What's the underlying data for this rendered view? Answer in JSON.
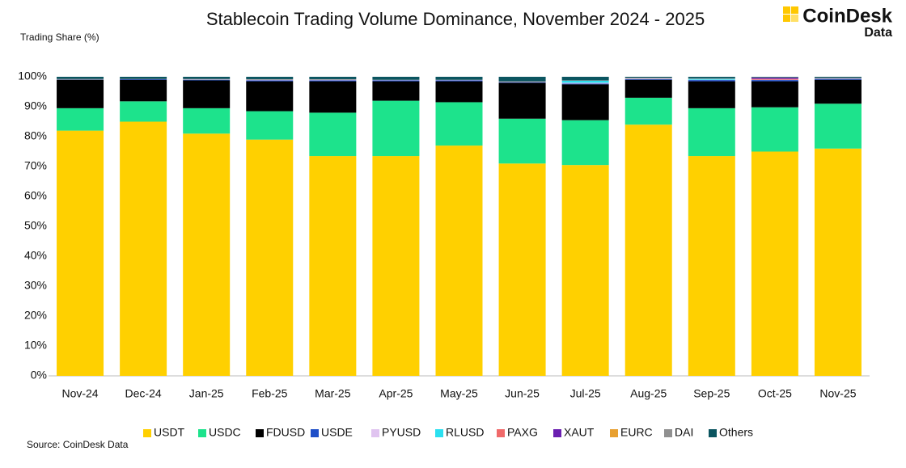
{
  "chart_data": {
    "type": "stacked_bar",
    "title": "Stablecoin Trading Volume Dominance, November 2024 - 2025",
    "y_label": "Trading Share (%)",
    "source": "Source: CoinDesk Data",
    "logo": {
      "name": "CoinDesk",
      "sub": "Data"
    },
    "categories": [
      "Nov-24",
      "Dec-24",
      "Jan-25",
      "Feb-25",
      "Mar-25",
      "Apr-25",
      "May-25",
      "Jun-25",
      "Jul-25",
      "Aug-25",
      "Sep-25",
      "Oct-25",
      "Nov-25"
    ],
    "ylim": [
      0,
      100
    ],
    "yticks": [
      {
        "value": 0,
        "label": "0%"
      },
      {
        "value": 10,
        "label": "10%"
      },
      {
        "value": 20,
        "label": "20%"
      },
      {
        "value": 30,
        "label": "30%"
      },
      {
        "value": 40,
        "label": "40%"
      },
      {
        "value": 50,
        "label": "50%"
      },
      {
        "value": 60,
        "label": "60%"
      },
      {
        "value": 70,
        "label": "70%"
      },
      {
        "value": 80,
        "label": "80%"
      },
      {
        "value": 90,
        "label": "90%"
      },
      {
        "value": 100,
        "label": "100%"
      }
    ],
    "grid": false,
    "legend": "bottom",
    "series": [
      {
        "name": "USDT",
        "color": "#FFD000",
        "values": [
          82,
          85,
          81,
          79,
          73.5,
          73.5,
          77,
          71,
          70.5,
          84,
          73.5,
          75,
          76
        ]
      },
      {
        "name": "USDC",
        "color": "#1DE38C",
        "values": [
          7.5,
          6.8,
          8.5,
          9.5,
          14.5,
          18.5,
          14.5,
          15,
          15,
          9,
          16,
          14.8,
          15
        ]
      },
      {
        "name": "FDUSD",
        "color": "#000000",
        "values": [
          9.5,
          7.2,
          9.3,
          10,
          10.5,
          6.5,
          7,
          12,
          12,
          6,
          9,
          8.7,
          8
        ]
      },
      {
        "name": "USDE",
        "color": "#1F4FC8",
        "values": [
          0.1,
          0.2,
          0.2,
          0.3,
          0.3,
          0.3,
          0.3,
          0.2,
          0.2,
          0.2,
          0.4,
          0.4,
          0.3
        ]
      },
      {
        "name": "PYUSD",
        "color": "#E0C4F0",
        "values": [
          0,
          0,
          0.1,
          0.2,
          0.2,
          0.1,
          0.1,
          0.1,
          0.3,
          0.2,
          0.1,
          0.1,
          0.1
        ]
      },
      {
        "name": "RLUSD",
        "color": "#2BE0F0",
        "values": [
          0,
          0,
          0,
          0,
          0,
          0,
          0,
          0,
          0.7,
          0,
          0.3,
          0,
          0
        ]
      },
      {
        "name": "PAXG",
        "color": "#F06A6A",
        "values": [
          0,
          0,
          0,
          0,
          0,
          0,
          0,
          0,
          0,
          0,
          0,
          0.3,
          0
        ]
      },
      {
        "name": "XAUT",
        "color": "#6A1FB0",
        "values": [
          0,
          0,
          0,
          0,
          0,
          0,
          0,
          0,
          0,
          0,
          0,
          0.4,
          0
        ]
      },
      {
        "name": "EURC",
        "color": "#E8A030",
        "values": [
          0,
          0,
          0,
          0,
          0,
          0,
          0,
          0,
          0,
          0,
          0,
          0,
          0
        ]
      },
      {
        "name": "DAI",
        "color": "#909090",
        "values": [
          0.2,
          0.1,
          0.2,
          0.2,
          0.2,
          0.1,
          0.1,
          0.2,
          0.1,
          0.3,
          0.2,
          0.1,
          0.3
        ]
      },
      {
        "name": "Others",
        "color": "#0B5560",
        "values": [
          0.7,
          0.7,
          0.7,
          0.8,
          0.8,
          1.0,
          1.0,
          1.5,
          1.2,
          0.3,
          0.5,
          0.2,
          0.3
        ]
      }
    ]
  }
}
